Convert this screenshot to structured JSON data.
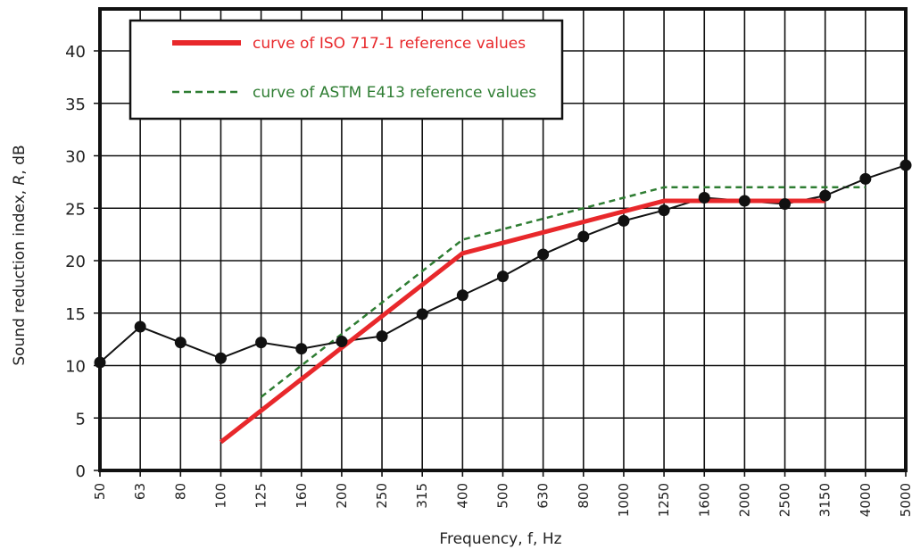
{
  "chart_data": {
    "type": "line",
    "xlabel": "Frequency, f, Hz",
    "ylabel_parts": [
      "Sound reduction index, ",
      "R",
      ", dB"
    ],
    "x_categories": [
      "50",
      "63",
      "80",
      "100",
      "125",
      "160",
      "200",
      "250",
      "315",
      "400",
      "500",
      "630",
      "800",
      "1000",
      "1250",
      "1600",
      "2000",
      "2500",
      "3150",
      "4000",
      "5000"
    ],
    "y_ticks": [
      "0",
      "5",
      "10",
      "15",
      "20",
      "25",
      "30",
      "35",
      "40"
    ],
    "ylim": [
      0,
      44
    ],
    "grid": true,
    "legend_position": "top-left",
    "colors": {
      "iso": "#e8282b",
      "astm": "#2e7d32",
      "measured": "#111111"
    },
    "series": [
      {
        "name": "measured",
        "style": "black line with circle markers",
        "x": [
          "50",
          "63",
          "80",
          "100",
          "125",
          "160",
          "200",
          "250",
          "315",
          "400",
          "500",
          "630",
          "800",
          "1000",
          "1250",
          "1600",
          "2000",
          "2500",
          "3150",
          "4000",
          "5000"
        ],
        "values": [
          10.3,
          13.7,
          12.2,
          10.7,
          12.2,
          11.6,
          12.3,
          12.8,
          14.9,
          16.7,
          18.5,
          20.6,
          22.3,
          23.8,
          24.8,
          26.0,
          25.7,
          25.4,
          26.2,
          27.8,
          29.1
        ]
      },
      {
        "name": "curve of ISO 717-1 reference values",
        "style": "thick red solid line",
        "x": [
          "100",
          "125",
          "160",
          "200",
          "250",
          "315",
          "400",
          "500",
          "630",
          "800",
          "1000",
          "1250",
          "1600",
          "2000",
          "2500",
          "3150"
        ],
        "values": [
          2.7,
          5.7,
          8.7,
          11.7,
          14.7,
          17.7,
          20.7,
          21.7,
          22.7,
          23.7,
          24.7,
          25.7,
          25.7,
          25.7,
          25.7,
          25.7
        ]
      },
      {
        "name": "curve of ASTM E413 reference values",
        "style": "green dashed line",
        "x": [
          "125",
          "160",
          "200",
          "250",
          "315",
          "400",
          "500",
          "630",
          "800",
          "1000",
          "1250",
          "1600",
          "2000",
          "2500",
          "3150",
          "4000"
        ],
        "values": [
          7,
          10,
          13,
          16,
          19,
          22,
          23,
          24,
          25,
          26,
          27,
          27,
          27,
          27,
          27,
          27
        ]
      }
    ]
  }
}
